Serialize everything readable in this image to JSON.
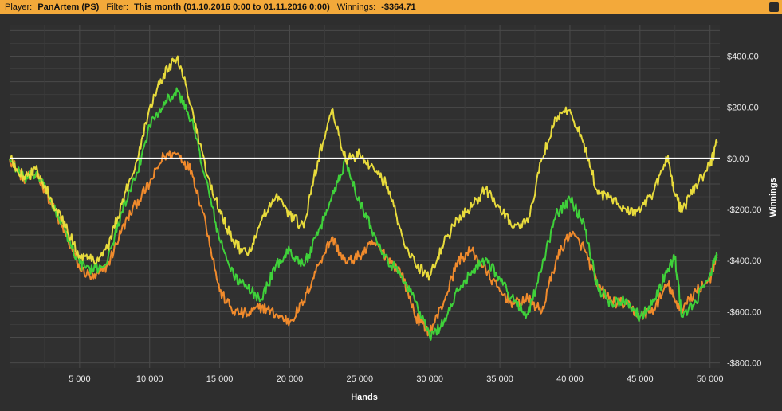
{
  "header": {
    "player_label": "Player:",
    "player_value": "PanArtem (PS)",
    "filter_label": "Filter:",
    "filter_value": "This month (01.10.2016 0:00 to 01.11.2016 0:00)",
    "winnings_label": "Winnings:",
    "winnings_value": "-$364.71"
  },
  "chart_data": {
    "type": "line",
    "title": "",
    "xlabel": "Hands",
    "ylabel": "Winnings",
    "xlim": [
      0,
      50700
    ],
    "ylim": [
      -820,
      520
    ],
    "x_ticks": [
      5000,
      10000,
      15000,
      20000,
      25000,
      30000,
      35000,
      40000,
      45000,
      50000
    ],
    "x_tick_labels": [
      "5 000",
      "10 000",
      "15 000",
      "20 000",
      "25 000",
      "30 000",
      "35 000",
      "40 000",
      "45 000",
      "50 000"
    ],
    "y_ticks": [
      400,
      200,
      0,
      -200,
      -400,
      -600,
      -800
    ],
    "y_tick_labels": [
      "$400.00",
      "$200.00",
      "$0.00",
      "-$200.00",
      "-$400.00",
      "-$600.00",
      "-$800.00"
    ],
    "zero_line": true,
    "grid": true,
    "legend": "none",
    "series": [
      {
        "color": "#f08a2c",
        "x": [
          0,
          1000,
          2000,
          3000,
          4000,
          5000,
          6000,
          7000,
          8000,
          9000,
          10000,
          11000,
          12000,
          13000,
          14000,
          15000,
          16000,
          17000,
          18000,
          19000,
          20000,
          21000,
          22000,
          23000,
          24000,
          25000,
          26000,
          27000,
          28000,
          29000,
          30000,
          31000,
          32000,
          33000,
          34000,
          35000,
          36000,
          37000,
          38000,
          39000,
          40000,
          41000,
          42000,
          43000,
          44000,
          45000,
          46000,
          47000,
          47500,
          48000,
          49000,
          50000,
          50500
        ],
        "y": [
          0,
          -80,
          -60,
          -180,
          -300,
          -430,
          -470,
          -420,
          -280,
          -180,
          -100,
          10,
          20,
          -50,
          -250,
          -520,
          -600,
          -610,
          -580,
          -610,
          -640,
          -560,
          -420,
          -310,
          -410,
          -380,
          -330,
          -390,
          -450,
          -620,
          -680,
          -560,
          -400,
          -360,
          -440,
          -520,
          -570,
          -550,
          -600,
          -400,
          -290,
          -350,
          -500,
          -560,
          -570,
          -620,
          -590,
          -490,
          -560,
          -590,
          -520,
          -470,
          -390
        ]
      },
      {
        "color": "#3fd13a",
        "x": [
          0,
          1000,
          2000,
          3000,
          4000,
          5000,
          6000,
          7000,
          8000,
          9000,
          10000,
          11000,
          12000,
          13000,
          14000,
          15000,
          16000,
          17000,
          18000,
          19000,
          20000,
          21000,
          22000,
          23000,
          24000,
          25000,
          26000,
          27000,
          28000,
          29000,
          30000,
          31000,
          32000,
          33000,
          34000,
          35000,
          36000,
          37000,
          38000,
          39000,
          40000,
          41000,
          42000,
          43000,
          44000,
          45000,
          46000,
          47000,
          47500,
          48000,
          49000,
          50000,
          50500
        ],
        "y": [
          0,
          -80,
          -60,
          -170,
          -290,
          -410,
          -440,
          -400,
          -210,
          -80,
          130,
          220,
          260,
          150,
          -80,
          -320,
          -460,
          -510,
          -550,
          -420,
          -360,
          -420,
          -300,
          -150,
          -10,
          -170,
          -290,
          -400,
          -460,
          -560,
          -700,
          -640,
          -520,
          -440,
          -390,
          -470,
          -560,
          -610,
          -430,
          -220,
          -160,
          -250,
          -510,
          -570,
          -550,
          -620,
          -560,
          -430,
          -390,
          -620,
          -560,
          -450,
          -380
        ]
      },
      {
        "color": "#e8db3c",
        "x": [
          0,
          1000,
          2000,
          3000,
          4000,
          5000,
          6000,
          7000,
          8000,
          9000,
          10000,
          11000,
          12000,
          13000,
          14000,
          15000,
          16000,
          17000,
          18000,
          19000,
          20000,
          21000,
          22000,
          23000,
          24000,
          25000,
          26000,
          27000,
          28000,
          29000,
          30000,
          31000,
          32000,
          33000,
          34000,
          35000,
          36000,
          37000,
          38000,
          39000,
          40000,
          41000,
          42000,
          43000,
          44000,
          45000,
          46000,
          47000,
          47500,
          48000,
          49000,
          50000,
          50500
        ],
        "y": [
          0,
          -70,
          -50,
          -160,
          -270,
          -380,
          -400,
          -350,
          -180,
          -20,
          200,
          330,
          400,
          200,
          -50,
          -200,
          -330,
          -380,
          -240,
          -150,
          -220,
          -270,
          -10,
          190,
          -10,
          20,
          -40,
          -110,
          -300,
          -420,
          -460,
          -330,
          -240,
          -190,
          -120,
          -190,
          -270,
          -250,
          0,
          160,
          190,
          60,
          -140,
          -160,
          -200,
          -210,
          -130,
          10,
          -140,
          -210,
          -100,
          -30,
          60
        ]
      }
    ]
  }
}
